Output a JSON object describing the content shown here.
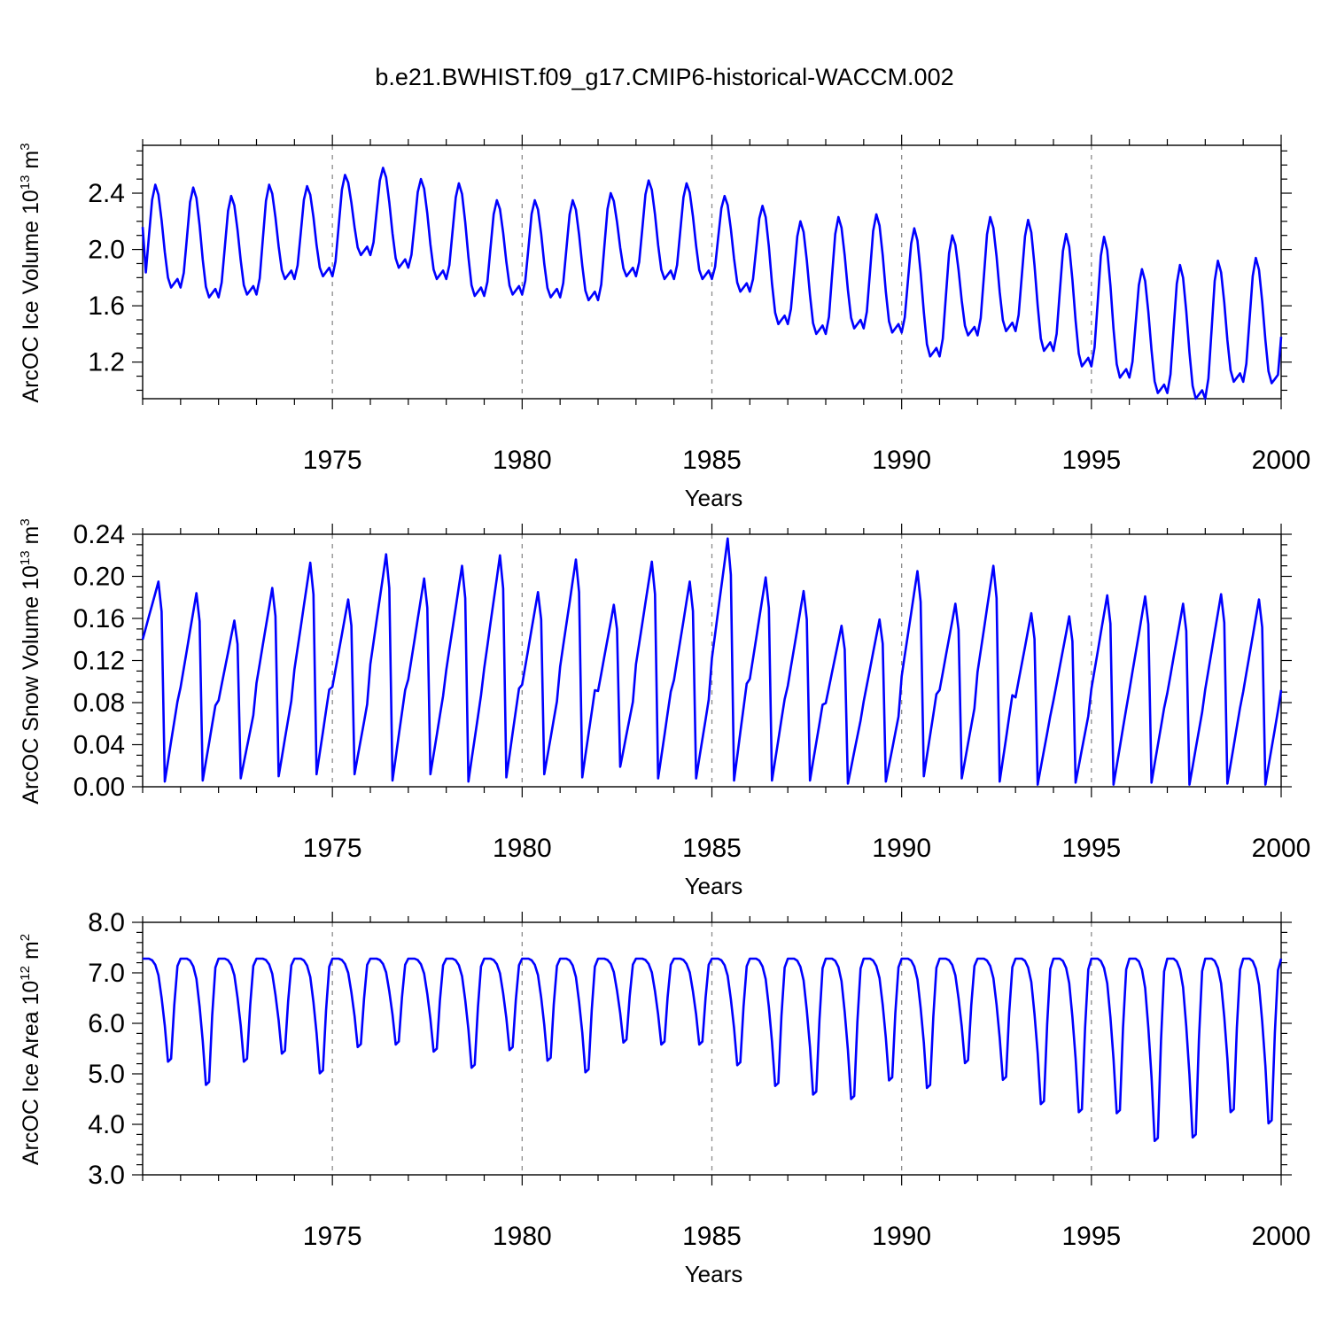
{
  "title": "b.e21.BWHIST.f09_g17.CMIP6-historical-WACCM.002",
  "colors": {
    "series": "#0000ff",
    "grid": "#8c8c8c",
    "axis": "#000000"
  },
  "chart_data": [
    {
      "type": "line",
      "id": "ice_volume",
      "ylabel_main": "ArcOC Ice Volume 10",
      "ylabel_exp": "13",
      "ylabel_unit": " m",
      "ylabel_unit_exp": "3",
      "xlabel": "Years",
      "xlim": [
        1970.0,
        2000.0
      ],
      "ylim": [
        0.94,
        2.74
      ],
      "y_ticks": [
        1.2,
        1.6,
        2.0,
        2.4
      ],
      "y_tick_labels": [
        "1.2",
        "1.6",
        "2.0",
        "2.4"
      ],
      "y_minor_step": 0.1,
      "x_ticks": [
        1975,
        1980,
        1985,
        1990,
        1995,
        2000
      ],
      "x_tick_labels": [
        "1975",
        "1980",
        "1985",
        "1990",
        "1995",
        "2000"
      ],
      "x_minor_step": 1,
      "grid_x": true,
      "seasonal": {
        "start_year": 1970,
        "peak_month": 4,
        "trough_month": 9,
        "max": [
          2.46,
          2.44,
          2.38,
          2.46,
          2.45,
          2.53,
          2.58,
          2.5,
          2.47,
          2.35,
          2.35,
          2.35,
          2.4,
          2.49,
          2.47,
          2.38,
          2.31,
          2.2,
          2.23,
          2.25,
          2.15,
          2.1,
          2.23,
          2.21,
          2.11,
          2.09,
          1.86,
          1.89,
          1.92,
          1.94
        ],
        "min": [
          1.73,
          1.66,
          1.68,
          1.79,
          1.81,
          1.96,
          1.87,
          1.79,
          1.67,
          1.68,
          1.66,
          1.64,
          1.81,
          1.79,
          1.79,
          1.7,
          1.47,
          1.4,
          1.44,
          1.41,
          1.24,
          1.39,
          1.42,
          1.28,
          1.17,
          1.09,
          0.98,
          0.94,
          1.06,
          1.05
        ],
        "end_value": 1.38
      }
    },
    {
      "type": "line",
      "id": "snow_volume",
      "ylabel_main": "ArcOC Snow Volume 10",
      "ylabel_exp": "13",
      "ylabel_unit": " m",
      "ylabel_unit_exp": "3",
      "xlabel": "Years",
      "xlim": [
        1970.0,
        2000.0
      ],
      "ylim": [
        0.0,
        0.24
      ],
      "y_ticks": [
        0.0,
        0.04,
        0.08,
        0.12,
        0.16,
        0.2,
        0.24
      ],
      "y_tick_labels": [
        "0.00",
        "0.04",
        "0.08",
        "0.12",
        "0.16",
        "0.20",
        "0.24"
      ],
      "y_minor_step": 0.01,
      "x_ticks": [
        1975,
        1980,
        1985,
        1990,
        1995,
        2000
      ],
      "x_tick_labels": [
        "1975",
        "1980",
        "1985",
        "1990",
        "1995",
        "2000"
      ],
      "x_minor_step": 1,
      "grid_x": true,
      "seasonal": {
        "start_year": 1970,
        "peak_month": 5,
        "trough_month": 7,
        "max": [
          0.195,
          0.184,
          0.158,
          0.189,
          0.213,
          0.178,
          0.221,
          0.198,
          0.21,
          0.22,
          0.185,
          0.216,
          0.173,
          0.214,
          0.195,
          0.236,
          0.199,
          0.186,
          0.153,
          0.159,
          0.205,
          0.174,
          0.21,
          0.165,
          0.162,
          0.182,
          0.181,
          0.174,
          0.183,
          0.178
        ],
        "min": [
          0.005,
          0.006,
          0.008,
          0.01,
          0.012,
          0.012,
          0.006,
          0.012,
          0.005,
          0.009,
          0.012,
          0.009,
          0.019,
          0.008,
          0.008,
          0.006,
          0.006,
          0.006,
          0.003,
          0.005,
          0.01,
          0.008,
          0.005,
          0.002,
          0.004,
          0.002,
          0.004,
          0.002,
          0.003,
          0.002
        ],
        "start_value": 0.14,
        "end_value": 0.092
      }
    },
    {
      "type": "line",
      "id": "ice_area",
      "ylabel_main": "ArcOC Ice Area 10",
      "ylabel_exp": "12",
      "ylabel_unit": " m",
      "ylabel_unit_exp": "2",
      "xlabel": "Years",
      "xlim": [
        1970.0,
        2000.0
      ],
      "ylim": [
        3.0,
        8.0
      ],
      "y_ticks": [
        3.0,
        4.0,
        5.0,
        6.0,
        7.0,
        8.0
      ],
      "y_tick_labels": [
        "3.0",
        "4.0",
        "5.0",
        "6.0",
        "7.0",
        "8.0"
      ],
      "y_minor_step": 0.2,
      "x_ticks": [
        1975,
        1980,
        1985,
        1990,
        1995,
        2000
      ],
      "x_tick_labels": [
        "1975",
        "1980",
        "1985",
        "1990",
        "1995",
        "2000"
      ],
      "x_minor_step": 1,
      "grid_x": true,
      "seasonal": {
        "start_year": 1970,
        "plateau": 7.28,
        "min": [
          5.24,
          4.78,
          5.24,
          5.4,
          5.01,
          5.53,
          5.58,
          5.44,
          5.12,
          5.47,
          5.26,
          5.03,
          5.62,
          5.58,
          5.58,
          5.17,
          4.76,
          4.59,
          4.5,
          4.87,
          4.72,
          5.21,
          4.88,
          4.4,
          4.24,
          4.22,
          3.67,
          3.74,
          4.24,
          4.02
        ],
        "end_value": 7.28
      }
    }
  ]
}
